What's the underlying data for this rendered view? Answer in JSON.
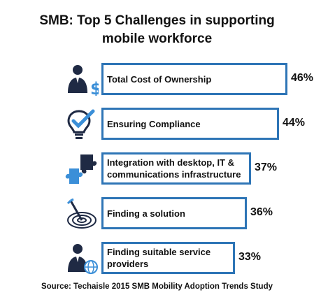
{
  "chart_data": {
    "type": "bar",
    "orientation": "horizontal",
    "title": [
      "SMB: Top 5 Challenges in supporting",
      "mobile workforce"
    ],
    "categories": [
      "Total Cost of Ownership",
      "Ensuring Compliance",
      "Integration with desktop, IT & communications  infrastructure",
      "Finding a solution",
      "Finding suitable service providers"
    ],
    "values": [
      46,
      44,
      37,
      36,
      33
    ],
    "value_labels": [
      "46%",
      "44%",
      "37%",
      "36%",
      "33%"
    ],
    "icons": [
      "businessman-dollar-icon",
      "lightbulb-check-icon",
      "puzzle-pieces-icon",
      "target-dart-icon",
      "businessman-globe-icon"
    ],
    "bar_color": "#2e75b6",
    "source": "Source: Techaisle 2015 SMB Mobility Adoption Trends Study"
  }
}
